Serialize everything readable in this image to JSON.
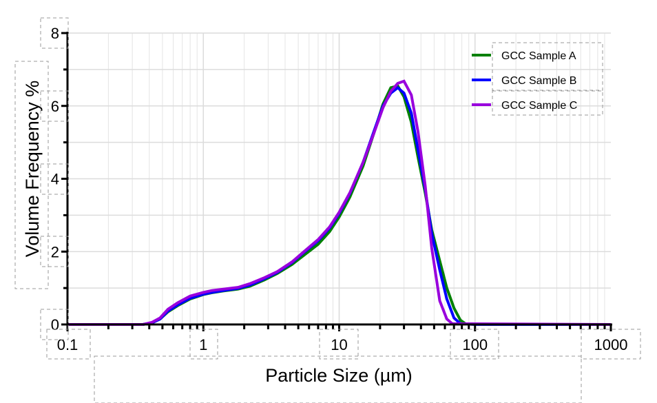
{
  "chart_data": {
    "type": "line",
    "title": "",
    "xlabel": "Particle Size (µm)",
    "ylabel": "Volume Frequency %",
    "xscale": "log",
    "xlim": [
      0.1,
      1000
    ],
    "ylim": [
      0,
      8
    ],
    "x_ticks": [
      "0.1",
      "1",
      "10",
      "100",
      "1000"
    ],
    "y_ticks": [
      "0",
      "2",
      "4",
      "6",
      "8"
    ],
    "grid": true,
    "legend_position": "upper right",
    "series": [
      {
        "name": "GCC Sample A",
        "color": "#008000",
        "x": [
          0.1,
          0.3,
          0.36,
          0.42,
          0.48,
          0.55,
          0.65,
          0.8,
          1.0,
          1.15,
          1.4,
          1.8,
          2.2,
          2.8,
          3.5,
          4.5,
          5.5,
          7.0,
          8.5,
          10,
          12,
          15,
          18,
          21,
          24,
          27,
          30,
          34,
          38,
          43,
          48,
          55,
          62,
          70,
          78,
          85,
          100,
          1000
        ],
        "values": [
          0,
          0,
          0,
          0.05,
          0.15,
          0.35,
          0.52,
          0.7,
          0.82,
          0.87,
          0.92,
          0.97,
          1.05,
          1.22,
          1.4,
          1.65,
          1.9,
          2.2,
          2.55,
          2.95,
          3.5,
          4.35,
          5.25,
          6.05,
          6.5,
          6.55,
          6.25,
          5.55,
          4.6,
          3.6,
          2.6,
          1.75,
          1.0,
          0.45,
          0.12,
          0.02,
          0,
          0
        ]
      },
      {
        "name": "GCC Sample B",
        "color": "#0000ff",
        "x": [
          0.1,
          0.3,
          0.36,
          0.42,
          0.48,
          0.55,
          0.65,
          0.8,
          1.0,
          1.15,
          1.4,
          1.8,
          2.2,
          2.8,
          3.5,
          4.5,
          5.5,
          7.0,
          8.5,
          10,
          12,
          15,
          18,
          21,
          24,
          27,
          30,
          34,
          38,
          43,
          48,
          55,
          62,
          70,
          78,
          100,
          1000
        ],
        "values": [
          0,
          0,
          0,
          0.05,
          0.15,
          0.37,
          0.54,
          0.72,
          0.83,
          0.88,
          0.93,
          0.99,
          1.08,
          1.25,
          1.43,
          1.7,
          1.98,
          2.3,
          2.65,
          3.05,
          3.6,
          4.45,
          5.3,
          6.0,
          6.35,
          6.5,
          6.35,
          5.8,
          4.8,
          3.7,
          2.5,
          1.5,
          0.7,
          0.18,
          0.02,
          0,
          0
        ]
      },
      {
        "name": "GCC Sample C",
        "color": "#9900dd",
        "x": [
          0.1,
          0.3,
          0.36,
          0.42,
          0.48,
          0.55,
          0.65,
          0.8,
          1.0,
          1.15,
          1.4,
          1.8,
          2.2,
          2.8,
          3.5,
          4.5,
          5.5,
          7.0,
          8.5,
          10,
          12,
          15,
          18,
          21,
          24,
          27,
          30,
          34,
          38,
          43,
          48,
          55,
          62,
          68,
          1000
        ],
        "values": [
          0,
          0,
          0,
          0.06,
          0.18,
          0.42,
          0.6,
          0.78,
          0.88,
          0.93,
          0.97,
          1.02,
          1.12,
          1.28,
          1.45,
          1.72,
          2.0,
          2.33,
          2.68,
          3.08,
          3.62,
          4.45,
          5.25,
          5.95,
          6.4,
          6.62,
          6.68,
          6.3,
          5.3,
          3.8,
          2.1,
          0.65,
          0.15,
          0.02,
          0
        ]
      }
    ]
  }
}
